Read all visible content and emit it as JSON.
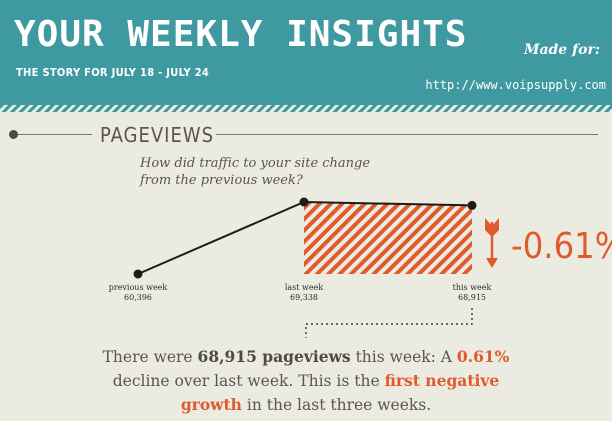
{
  "header": {
    "title": "YOUR WEEKLY INSIGHTS",
    "subtitle": "THE STORY FOR JULY 18 - JULY 24",
    "made_for_label": "Made for:",
    "site_url": "http://www.voipsupply.com"
  },
  "section": {
    "title": "PAGEVIEWS",
    "question": "How did traffic to your site change from the previous week?"
  },
  "chart_data": {
    "type": "line",
    "categories": [
      "previous week",
      "last week",
      "this week"
    ],
    "values": [
      60396,
      69338,
      68915
    ],
    "value_labels": [
      "60,396",
      "69,338",
      "68,915"
    ],
    "change_label": "-0.61%",
    "direction": "down",
    "colors": {
      "line": "#1e1c1a",
      "decline": "#df5b2d"
    }
  },
  "summary": {
    "p1": "There were ",
    "b1": "68,915 pageviews",
    "p2": " this week: A ",
    "h1": "0.61%",
    "p3": " decline over last week. This is the ",
    "h2": "first negative growth",
    "p4": " in the last three weeks."
  },
  "colors": {
    "header_bg": "#3e9aa0",
    "page_bg": "#ecebe2",
    "accent": "#df5b2d"
  }
}
